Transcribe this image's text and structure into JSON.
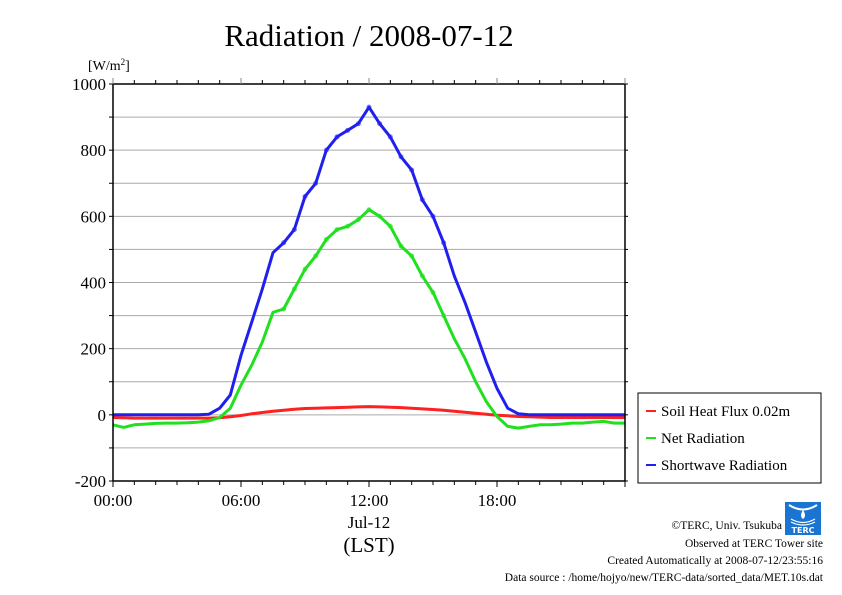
{
  "chart_data": {
    "type": "line",
    "title": "Radiation / 2008-07-12",
    "ylabel": "[W/m2]",
    "ylabel_base": "[W/m",
    "ylabel_sup": "2",
    "ylabel_close": "]",
    "xlabel": "(LST)",
    "x_date_label": "Jul-12",
    "ylim": [
      -200,
      1000
    ],
    "xlim_hours": [
      0,
      24
    ],
    "y_ticks": [
      -200,
      0,
      200,
      400,
      600,
      800,
      1000
    ],
    "y_tick_labels": [
      "-200",
      "0",
      "200",
      "400",
      "600",
      "800",
      "1000"
    ],
    "y_grid_step": 100,
    "x_ticks_hours": [
      0,
      6,
      12,
      18
    ],
    "x_tick_labels": [
      "00:00",
      "06:00",
      "12:00",
      "18:00"
    ],
    "grid": "horizontal",
    "legend_position": "right",
    "x_hours": [
      0,
      0.5,
      1,
      1.5,
      2,
      2.5,
      3,
      3.5,
      4,
      4.5,
      5,
      5.5,
      6,
      6.5,
      7,
      7.5,
      8,
      8.5,
      9,
      9.5,
      10,
      10.5,
      11,
      11.5,
      12,
      12.5,
      13,
      13.5,
      14,
      14.5,
      15,
      15.5,
      16,
      16.5,
      17,
      17.5,
      18,
      18.5,
      19,
      19.5,
      20,
      20.5,
      21,
      21.5,
      22,
      22.5,
      23,
      23.5,
      24
    ],
    "series": [
      {
        "name": "Soil Heat Flux 0.02m",
        "color": "#ff2020",
        "values": [
          -8,
          -9,
          -10,
          -10,
          -10,
          -10,
          -10,
          -10,
          -10,
          -10,
          -9,
          -6,
          -2,
          3,
          7,
          11,
          14,
          17,
          19,
          20,
          21,
          22,
          23,
          24,
          25,
          24,
          23,
          22,
          20,
          18,
          16,
          14,
          11,
          8,
          5,
          2,
          -1,
          -3,
          -5,
          -6,
          -7,
          -8,
          -8,
          -8,
          -8,
          -8,
          -8,
          -8,
          -8
        ]
      },
      {
        "name": "Net Radiation",
        "color": "#20e020",
        "values": [
          -30,
          -38,
          -30,
          -28,
          -26,
          -25,
          -25,
          -24,
          -22,
          -18,
          -8,
          20,
          90,
          150,
          220,
          310,
          320,
          380,
          440,
          480,
          530,
          560,
          570,
          590,
          620,
          600,
          570,
          510,
          480,
          420,
          370,
          300,
          230,
          170,
          100,
          40,
          -5,
          -35,
          -40,
          -35,
          -30,
          -30,
          -28,
          -25,
          -25,
          -22,
          -20,
          -25,
          -25
        ]
      },
      {
        "name": "Shortwave Radiation",
        "color": "#2020ee",
        "values": [
          0,
          0,
          0,
          0,
          0,
          0,
          0,
          0,
          0,
          2,
          20,
          60,
          180,
          280,
          380,
          490,
          520,
          560,
          660,
          700,
          800,
          840,
          860,
          880,
          930,
          880,
          840,
          780,
          740,
          650,
          600,
          520,
          420,
          340,
          250,
          160,
          80,
          20,
          3,
          0,
          0,
          0,
          0,
          0,
          0,
          0,
          0,
          0,
          0
        ]
      }
    ]
  },
  "footer": {
    "copyright": "©TERC, Univ. Tsukuba",
    "observed": "Observed at TERC Tower site",
    "created": "Created Automatically at 2008-07-12/23:55:16",
    "source": "Data source : /home/hojyo/new/TERC-data/sorted_data/MET.10s.dat",
    "logo_text": "TERC"
  }
}
